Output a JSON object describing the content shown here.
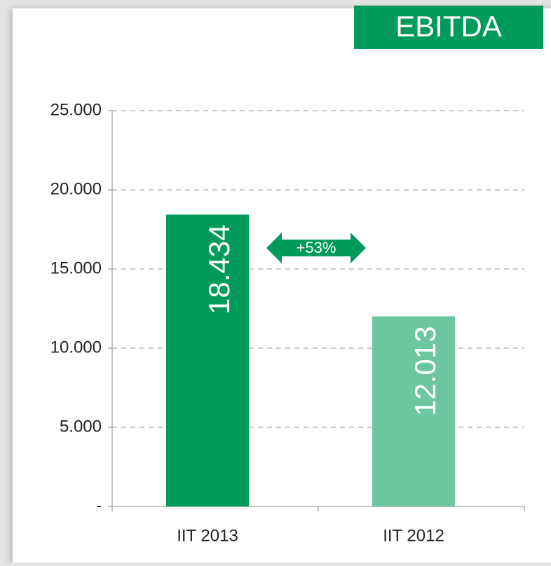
{
  "chart_data": {
    "type": "bar",
    "title": "EBITDA",
    "categories": [
      "IIT 2013",
      "IIT 2012"
    ],
    "values": [
      18434,
      12013
    ],
    "value_labels": [
      "18.434",
      "12.013"
    ],
    "colors": [
      "#009a5a",
      "#6cc6a0"
    ],
    "ylim": [
      0,
      25000
    ],
    "yticks": [
      {
        "value": 0,
        "label": "-"
      },
      {
        "value": 5000,
        "label": "5.000"
      },
      {
        "value": 10000,
        "label": "10.000"
      },
      {
        "value": 15000,
        "label": "15.000"
      },
      {
        "value": 20000,
        "label": "20.000"
      },
      {
        "value": 25000,
        "label": "25.000"
      }
    ],
    "grid": true,
    "annotation": "+53%"
  }
}
